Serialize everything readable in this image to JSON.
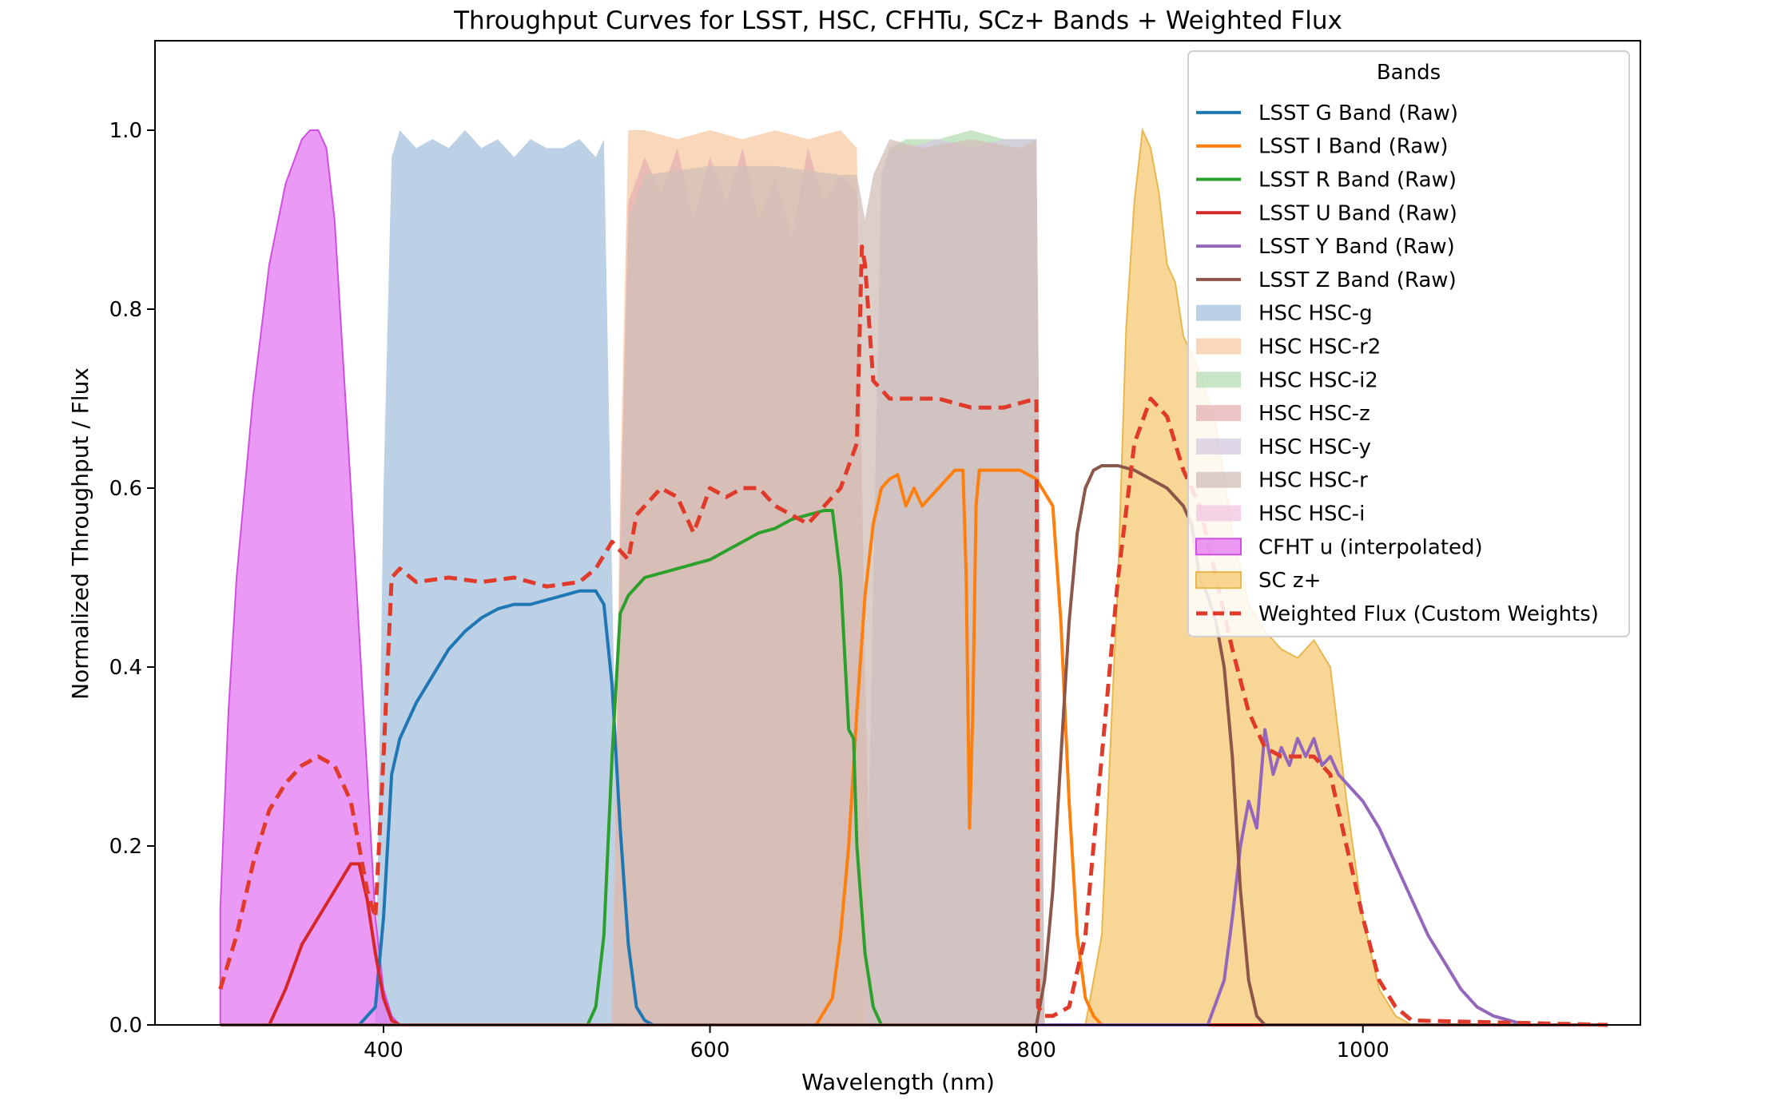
{
  "chart_data": {
    "type": "line",
    "title": "Throughput Curves for LSST, HSC, CFHTu, SCz+ Bands + Weighted Flux",
    "xlabel": "Wavelength (nm)",
    "ylabel": "Normalized Throughput / Flux",
    "xlim": [
      260,
      1170
    ],
    "ylim": [
      0,
      1.1
    ],
    "xticks": [
      400,
      600,
      800,
      1000
    ],
    "yticks": [
      0.0,
      0.2,
      0.4,
      0.6,
      0.8,
      1.0
    ],
    "xtick_labels": [
      "400",
      "600",
      "800",
      "1000"
    ],
    "ytick_labels": [
      "0.0",
      "0.2",
      "0.4",
      "0.6",
      "0.8",
      "1.0"
    ],
    "grid": false,
    "legend": {
      "title": "Bands",
      "placement": "top-right"
    },
    "series": [
      {
        "name": "LSST G Band (Raw)",
        "kind": "line",
        "color": "#1f77b4",
        "x": [
          300,
          385,
          395,
          400,
          405,
          410,
          420,
          430,
          440,
          450,
          460,
          470,
          480,
          490,
          500,
          510,
          520,
          530,
          535,
          540,
          545,
          550,
          555,
          560,
          565,
          1150
        ],
        "y": [
          0,
          0,
          0.02,
          0.12,
          0.28,
          0.32,
          0.36,
          0.39,
          0.42,
          0.44,
          0.455,
          0.465,
          0.47,
          0.47,
          0.475,
          0.48,
          0.485,
          0.485,
          0.47,
          0.38,
          0.22,
          0.09,
          0.02,
          0.005,
          0,
          0
        ]
      },
      {
        "name": "LSST I Band (Raw)",
        "kind": "line",
        "color": "#ff7f0e",
        "x": [
          300,
          665,
          675,
          680,
          685,
          690,
          695,
          700,
          705,
          710,
          715,
          720,
          725,
          730,
          740,
          750,
          755,
          757,
          759,
          761,
          763,
          765,
          770,
          780,
          790,
          800,
          810,
          815,
          820,
          825,
          830,
          835,
          840,
          1150
        ],
        "y": [
          0,
          0,
          0.03,
          0.1,
          0.2,
          0.35,
          0.48,
          0.56,
          0.6,
          0.61,
          0.615,
          0.58,
          0.6,
          0.58,
          0.6,
          0.62,
          0.62,
          0.5,
          0.22,
          0.35,
          0.58,
          0.62,
          0.62,
          0.62,
          0.62,
          0.61,
          0.58,
          0.45,
          0.25,
          0.1,
          0.03,
          0.01,
          0,
          0
        ]
      },
      {
        "name": "LSST R Band (Raw)",
        "kind": "line",
        "color": "#2ca02c",
        "x": [
          300,
          525,
          530,
          535,
          540,
          545,
          550,
          560,
          570,
          580,
          590,
          600,
          610,
          620,
          630,
          640,
          650,
          660,
          670,
          675,
          680,
          685,
          688,
          690,
          695,
          700,
          705,
          1150
        ],
        "y": [
          0,
          0,
          0.02,
          0.1,
          0.3,
          0.46,
          0.48,
          0.5,
          0.505,
          0.51,
          0.515,
          0.52,
          0.53,
          0.54,
          0.55,
          0.555,
          0.565,
          0.57,
          0.575,
          0.575,
          0.5,
          0.33,
          0.32,
          0.2,
          0.08,
          0.02,
          0,
          0
        ]
      },
      {
        "name": "LSST U Band (Raw)",
        "kind": "line",
        "color": "#d62728",
        "x": [
          300,
          330,
          340,
          350,
          360,
          370,
          380,
          385,
          390,
          395,
          400,
          405,
          410,
          1150
        ],
        "y": [
          0,
          0,
          0.04,
          0.09,
          0.12,
          0.15,
          0.18,
          0.18,
          0.14,
          0.08,
          0.03,
          0.005,
          0,
          0
        ]
      },
      {
        "name": "LSST Y Band (Raw)",
        "kind": "line",
        "color": "#9467bd",
        "x": [
          300,
          905,
          915,
          920,
          925,
          930,
          935,
          940,
          945,
          950,
          955,
          960,
          965,
          970,
          975,
          980,
          985,
          990,
          1000,
          1010,
          1020,
          1030,
          1040,
          1050,
          1060,
          1070,
          1080,
          1090,
          1100,
          1120,
          1150
        ],
        "y": [
          0,
          0,
          0.05,
          0.12,
          0.2,
          0.25,
          0.22,
          0.33,
          0.28,
          0.31,
          0.29,
          0.32,
          0.3,
          0.32,
          0.29,
          0.3,
          0.28,
          0.27,
          0.25,
          0.22,
          0.18,
          0.14,
          0.1,
          0.07,
          0.04,
          0.02,
          0.01,
          0.005,
          0,
          0,
          0
        ]
      },
      {
        "name": "LSST Z Band (Raw)",
        "kind": "line",
        "color": "#8c564b",
        "x": [
          300,
          800,
          805,
          810,
          815,
          820,
          825,
          830,
          835,
          840,
          850,
          860,
          870,
          880,
          890,
          895,
          900,
          905,
          910,
          915,
          920,
          925,
          930,
          935,
          940,
          1150
        ],
        "y": [
          0,
          0,
          0.05,
          0.15,
          0.3,
          0.45,
          0.55,
          0.6,
          0.62,
          0.625,
          0.625,
          0.62,
          0.61,
          0.6,
          0.58,
          0.56,
          0.5,
          0.48,
          0.45,
          0.4,
          0.3,
          0.15,
          0.05,
          0.01,
          0,
          0
        ]
      },
      {
        "name": "HSC HSC-g",
        "kind": "area",
        "color": "#a6c2dd",
        "x": [
          395,
          400,
          405,
          410,
          420,
          430,
          440,
          450,
          460,
          470,
          480,
          490,
          500,
          510,
          520,
          530,
          535,
          540,
          545,
          550
        ],
        "y": [
          0,
          0.6,
          0.97,
          1.0,
          0.98,
          0.99,
          0.98,
          1.0,
          0.98,
          0.99,
          0.97,
          0.99,
          0.98,
          0.98,
          0.99,
          0.97,
          0.99,
          0.5,
          0.05,
          0
        ]
      },
      {
        "name": "HSC HSC-r2",
        "kind": "area",
        "color": "#f7c9a3",
        "x": [
          540,
          545,
          550,
          560,
          580,
          600,
          620,
          640,
          660,
          680,
          690,
          695,
          700
        ],
        "y": [
          0,
          0.6,
          1.0,
          1.0,
          0.99,
          1.0,
          0.99,
          1.0,
          0.99,
          1.0,
          0.98,
          0.4,
          0
        ]
      },
      {
        "name": "HSC HSC-i2",
        "kind": "area",
        "color": "#b6dcb4",
        "x": [
          695,
          700,
          705,
          710,
          720,
          740,
          760,
          780,
          800,
          805
        ],
        "y": [
          0,
          0.5,
          0.95,
          0.98,
          0.99,
          0.99,
          1.0,
          0.99,
          0.99,
          0
        ]
      },
      {
        "name": "HSC HSC-z",
        "kind": "area",
        "color": "#e4b1b2",
        "x": [
          540,
          545,
          550,
          560,
          570,
          580,
          590,
          600,
          610,
          620,
          630,
          640,
          650,
          660,
          670,
          680,
          690,
          695,
          700
        ],
        "y": [
          0,
          0.55,
          0.92,
          0.97,
          0.93,
          0.98,
          0.9,
          0.97,
          0.92,
          0.98,
          0.9,
          0.95,
          0.88,
          0.98,
          0.92,
          0.95,
          0.93,
          0.4,
          0
        ]
      },
      {
        "name": "HSC HSC-y",
        "kind": "area",
        "color": "#d4c8e2",
        "x": [
          695,
          700,
          705,
          710,
          720,
          740,
          760,
          780,
          800,
          805
        ],
        "y": [
          0,
          0.5,
          0.95,
          0.98,
          0.98,
          0.99,
          0.98,
          0.99,
          0.99,
          0
        ]
      },
      {
        "name": "HSC HSC-r",
        "kind": "area",
        "color": "#d0bfb8",
        "x": [
          540,
          545,
          550,
          560,
          600,
          640,
          680,
          690,
          695,
          700,
          710,
          730,
          760,
          790,
          800,
          805
        ],
        "y": [
          0,
          0.5,
          0.9,
          0.95,
          0.96,
          0.96,
          0.95,
          0.95,
          0.9,
          0.95,
          0.99,
          0.98,
          0.99,
          0.98,
          0.99,
          0
        ]
      },
      {
        "name": "HSC HSC-i",
        "kind": "area",
        "color": "#f1c5e1",
        "x": [],
        "y": []
      },
      {
        "name": "CFHT u (interpolated)",
        "kind": "area",
        "color": "#e377f1",
        "stroke": "#d04ee2",
        "x": [
          300,
          305,
          310,
          320,
          330,
          340,
          350,
          355,
          360,
          365,
          370,
          380,
          390,
          395,
          400,
          405,
          410
        ],
        "y": [
          0.13,
          0.35,
          0.5,
          0.7,
          0.85,
          0.94,
          0.99,
          1.0,
          1.0,
          0.98,
          0.9,
          0.6,
          0.28,
          0.12,
          0.04,
          0.01,
          0
        ]
      },
      {
        "name": "SC z+",
        "kind": "area",
        "color": "#f5c871",
        "stroke": "#e8b74e",
        "x": [
          830,
          840,
          850,
          855,
          860,
          865,
          870,
          875,
          880,
          885,
          890,
          900,
          910,
          920,
          930,
          940,
          950,
          960,
          970,
          980,
          990,
          1000,
          1010,
          1020,
          1030
        ],
        "y": [
          0,
          0.1,
          0.5,
          0.78,
          0.92,
          1.0,
          0.98,
          0.93,
          0.85,
          0.83,
          0.77,
          0.73,
          0.67,
          0.55,
          0.47,
          0.44,
          0.42,
          0.41,
          0.43,
          0.4,
          0.25,
          0.12,
          0.04,
          0.01,
          0
        ]
      },
      {
        "name": "Weighted Flux (Custom Weights)",
        "kind": "dashed",
        "color": "#e03a2a",
        "x": [
          300,
          310,
          320,
          330,
          340,
          350,
          360,
          370,
          380,
          390,
          395,
          400,
          405,
          410,
          420,
          440,
          460,
          480,
          500,
          520,
          530,
          540,
          550,
          555,
          560,
          570,
          580,
          590,
          600,
          610,
          620,
          630,
          640,
          650,
          660,
          670,
          680,
          690,
          693,
          695,
          700,
          710,
          720,
          740,
          760,
          780,
          800,
          801,
          805,
          810,
          820,
          830,
          840,
          850,
          860,
          870,
          880,
          890,
          900,
          910,
          920,
          930,
          940,
          950,
          960,
          970,
          980,
          990,
          1000,
          1010,
          1020,
          1030,
          1150
        ],
        "y": [
          0.04,
          0.1,
          0.18,
          0.24,
          0.27,
          0.29,
          0.3,
          0.29,
          0.25,
          0.15,
          0.12,
          0.3,
          0.5,
          0.51,
          0.495,
          0.5,
          0.495,
          0.5,
          0.49,
          0.495,
          0.51,
          0.54,
          0.52,
          0.57,
          0.58,
          0.6,
          0.59,
          0.55,
          0.6,
          0.59,
          0.6,
          0.6,
          0.58,
          0.57,
          0.56,
          0.58,
          0.6,
          0.65,
          0.87,
          0.85,
          0.72,
          0.7,
          0.7,
          0.7,
          0.69,
          0.69,
          0.7,
          0.02,
          0.01,
          0.01,
          0.02,
          0.1,
          0.3,
          0.5,
          0.65,
          0.7,
          0.68,
          0.62,
          0.58,
          0.5,
          0.42,
          0.35,
          0.31,
          0.3,
          0.3,
          0.3,
          0.28,
          0.2,
          0.12,
          0.05,
          0.02,
          0.005,
          0
        ]
      }
    ]
  }
}
